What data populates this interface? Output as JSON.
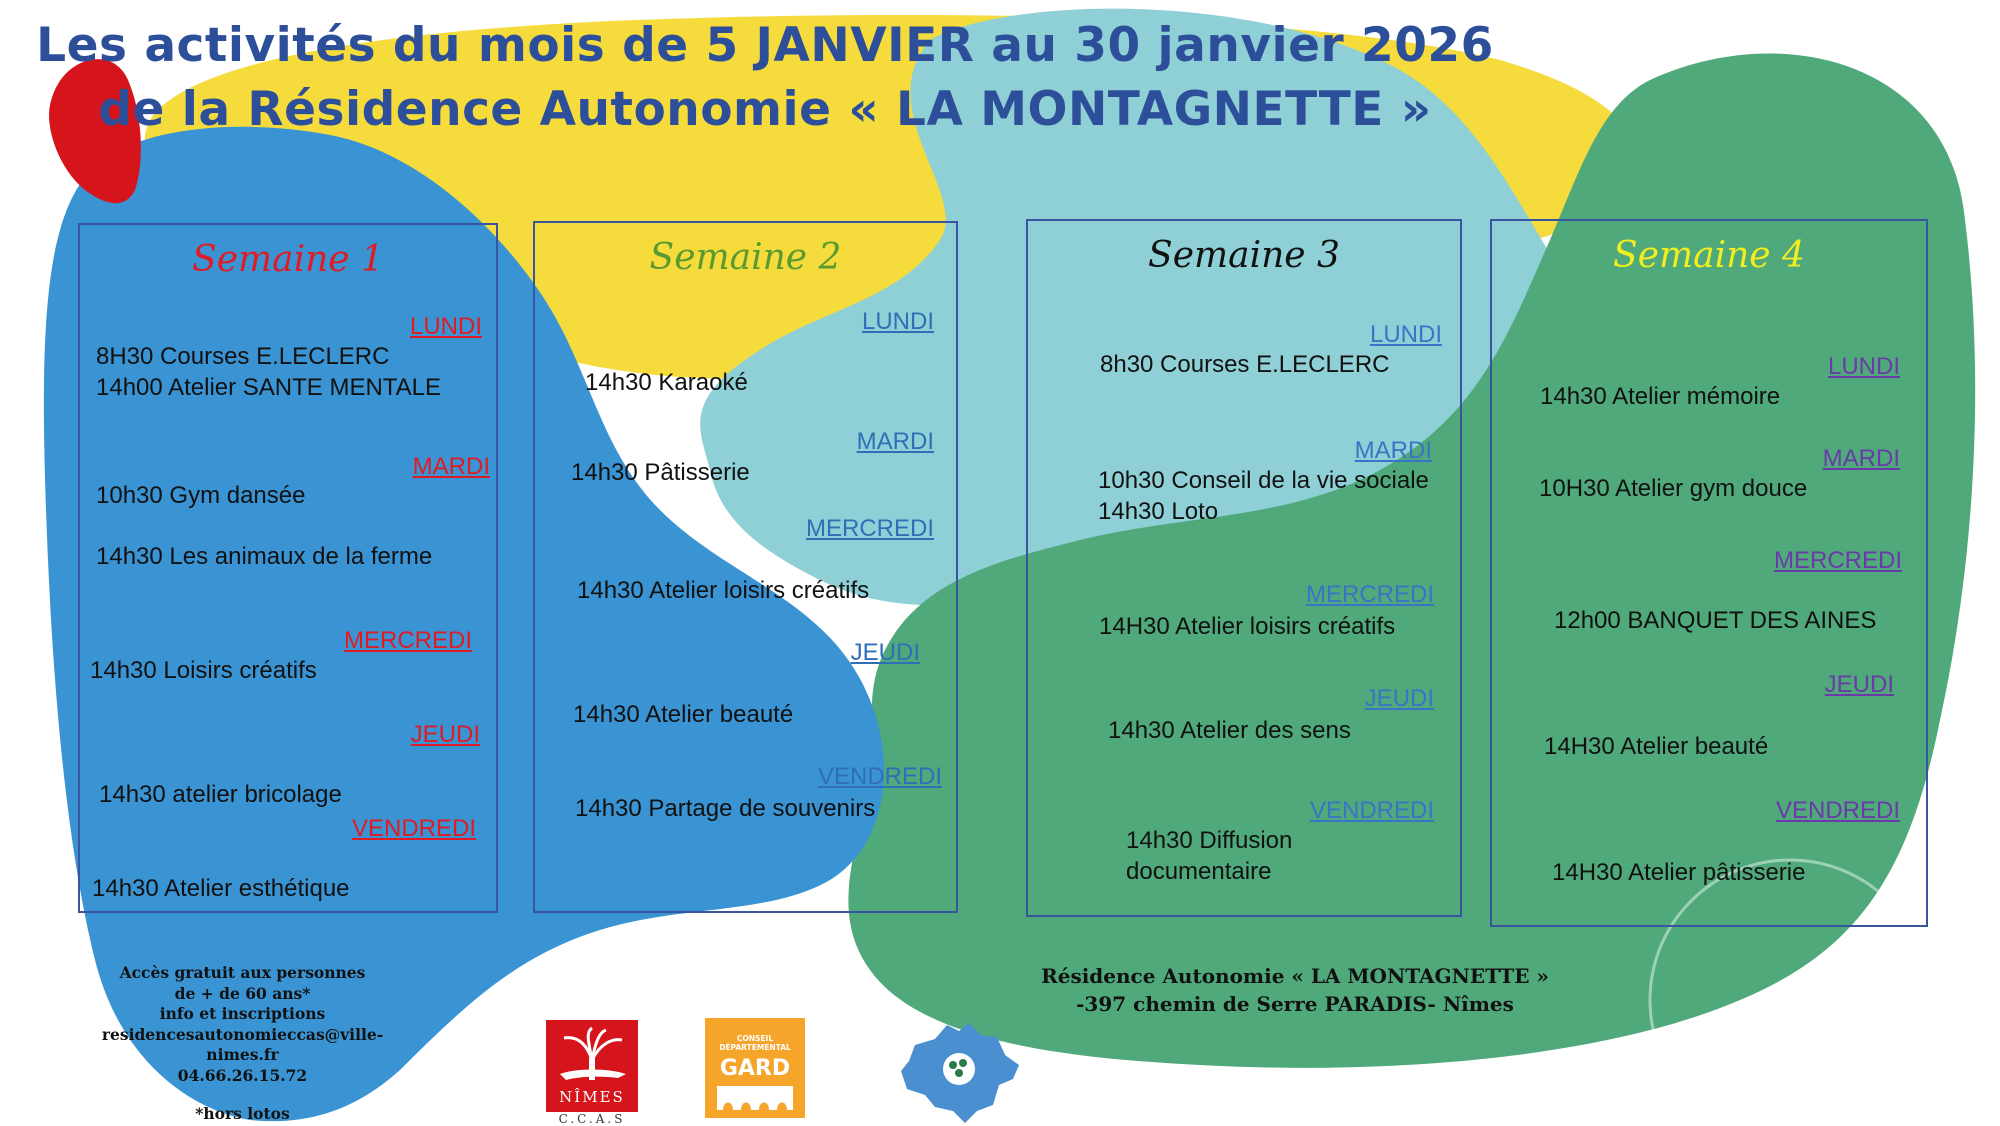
{
  "header": {
    "line1": "Les activités du mois de 5 JANVIER au 30 janvier 2026",
    "line2": "de la Résidence Autonomie « LA MONTAGNETTE »"
  },
  "colors": {
    "title": "#2d4f9a",
    "blob_blue": "#3a93d2",
    "blob_yellow": "#f5dc3c",
    "blob_teal": "#8ed0d6",
    "blob_green": "#4fa97a",
    "blob_red": "#d6141b",
    "week1_title": "#e01b24",
    "week2_title": "#5a9a2e",
    "week3_title": "#111111",
    "week4_title": "#f2ee1f",
    "week1_days": "#e01b24",
    "week2_days": "#2f6fb8",
    "week3_days": "#3a74c4",
    "week4_days": "#6a3aa8"
  },
  "weeks": [
    {
      "title": "Semaine 1",
      "days": [
        "LUNDI",
        "MARDI",
        "MERCREDI",
        "JEUDI",
        "VENDREDI"
      ],
      "activities": [
        "8H30 Courses E.LECLERC",
        "14h00 Atelier SANTE MENTALE",
        "10h30 Gym dansée",
        "14h30  Les animaux de la ferme",
        "14h30  Loisirs créatifs",
        "14h30  atelier bricolage",
        "14h30  Atelier esthétique"
      ]
    },
    {
      "title": "Semaine 2",
      "days": [
        "LUNDI",
        "MARDI",
        "MERCREDI",
        "JEUDI",
        "VENDREDI"
      ],
      "activities": [
        "14h30 Karaoké",
        "14h30 Pâtisserie",
        "14h30 Atelier loisirs créatifs",
        "14h30 Atelier beauté",
        "14h30 Partage de souvenirs"
      ]
    },
    {
      "title": "Semaine 3",
      "days": [
        "LUNDI",
        "MARDI",
        "MERCREDI",
        "JEUDI",
        "VENDREDI"
      ],
      "activities": [
        "8h30 Courses E.LECLERC",
        "10h30 Conseil de la vie sociale",
        "14h30 Loto",
        "14H30 Atelier loisirs créatifs",
        "14h30 Atelier  des sens",
        "14h30 Diffusion",
        "documentaire"
      ]
    },
    {
      "title": "Semaine 4",
      "days": [
        "LUNDI",
        "MARDI",
        "MERCREDI",
        "JEUDI",
        "VENDREDI"
      ],
      "activities": [
        "14h30 Atelier mémoire",
        "10H30 Atelier gym douce",
        "12h00 BANQUET DES AINES",
        "14H30 Atelier beauté",
        "14H30 Atelier pâtisserie"
      ]
    }
  ],
  "footer": {
    "access_line1": "Accès gratuit aux personnes",
    "access_line2": "de + de 60 ans*",
    "access_line3": "info et inscriptions",
    "email": "residencesautonomieccas@ville-nimes.fr",
    "phone": "04.66.26.15.72",
    "note": "*hors lotos",
    "address_line1": "Résidence Autonomie « LA MONTAGNETTE »",
    "address_line2": "-397 chemin de Serre PARADIS- Nîmes"
  },
  "logos": {
    "nimes": {
      "icon": "crocodile-palm-icon",
      "name": "NÎMES",
      "sub": "C.C.A.S"
    },
    "gard": {
      "icon": "pont-du-gard-icon",
      "top": "CONSEIL DÉPARTEMENTAL",
      "name": "GARD"
    },
    "montagnette": {
      "icon": "region-map-icon"
    }
  }
}
